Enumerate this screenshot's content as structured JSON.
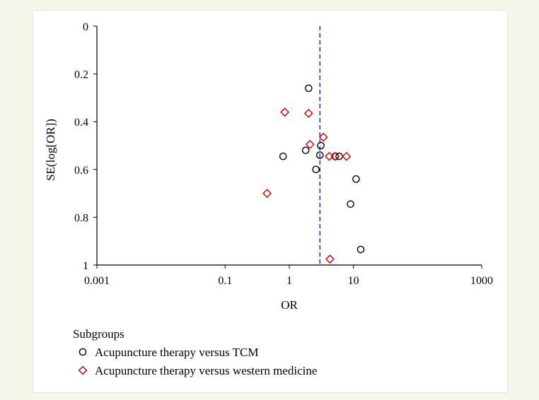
{
  "colors": {
    "background": "#f6f6ea",
    "panel": "#ffffff",
    "circle_stroke": "#000000",
    "diamond_stroke": "#c00000",
    "reference_line": "#2b2bcc"
  },
  "legend": {
    "title": "Subgroups",
    "items": [
      {
        "label": "Acupuncture therapy versus TCM",
        "marker": "circle"
      },
      {
        "label": "Acupuncture therapy versus western medicine",
        "marker": "diamond"
      }
    ]
  },
  "chart_data": {
    "type": "scatter",
    "title": "",
    "xlabel": "OR",
    "ylabel": "SE(log[OR])",
    "x_scale": "log",
    "xlim": [
      0.001,
      1000
    ],
    "ylim": [
      0,
      1
    ],
    "y_inverted": true,
    "x_ticks": [
      {
        "value": 0.001,
        "label": "0.001"
      },
      {
        "value": 0.1,
        "label": "0.1"
      },
      {
        "value": 1,
        "label": "1"
      },
      {
        "value": 10,
        "label": "10"
      },
      {
        "value": 1000,
        "label": "1000"
      }
    ],
    "y_ticks": [
      {
        "value": 0,
        "label": "0"
      },
      {
        "value": 0.2,
        "label": "0.2"
      },
      {
        "value": 0.4,
        "label": "0.4"
      },
      {
        "value": 0.6,
        "label": "0.6"
      },
      {
        "value": 0.8,
        "label": "0.8"
      },
      {
        "value": 1,
        "label": "1"
      }
    ],
    "reference_line": {
      "x": 3.0,
      "style": "dashed"
    },
    "grid": false,
    "series": [
      {
        "name": "Acupuncture therapy versus TCM",
        "marker": "circle",
        "points": [
          {
            "x": 2.0,
            "y": 0.26
          },
          {
            "x": 3.1,
            "y": 0.5
          },
          {
            "x": 3.0,
            "y": 0.54
          },
          {
            "x": 1.8,
            "y": 0.52
          },
          {
            "x": 0.8,
            "y": 0.545
          },
          {
            "x": 2.6,
            "y": 0.6
          },
          {
            "x": 5.2,
            "y": 0.545
          },
          {
            "x": 6.0,
            "y": 0.545
          },
          {
            "x": 11.0,
            "y": 0.64
          },
          {
            "x": 9.0,
            "y": 0.745
          },
          {
            "x": 13.0,
            "y": 0.935
          }
        ]
      },
      {
        "name": "Acupuncture therapy versus western medicine",
        "marker": "diamond",
        "points": [
          {
            "x": 0.85,
            "y": 0.36
          },
          {
            "x": 2.0,
            "y": 0.365
          },
          {
            "x": 3.4,
            "y": 0.465
          },
          {
            "x": 2.1,
            "y": 0.495
          },
          {
            "x": 4.2,
            "y": 0.545
          },
          {
            "x": 5.2,
            "y": 0.545
          },
          {
            "x": 7.8,
            "y": 0.545
          },
          {
            "x": 0.45,
            "y": 0.7
          },
          {
            "x": 4.3,
            "y": 0.975
          }
        ]
      }
    ]
  }
}
